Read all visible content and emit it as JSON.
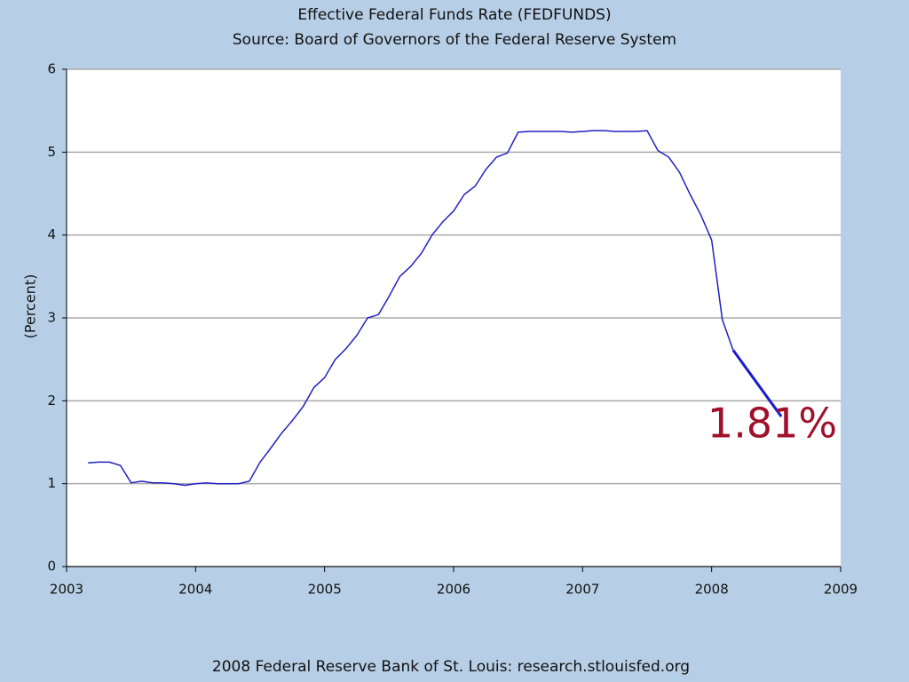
{
  "chart_data": {
    "type": "line",
    "title": "Effective Federal Funds Rate (FEDFUNDS)",
    "subtitle": "Source: Board of Governors of the Federal Reserve System",
    "ylabel": "(Percent)",
    "footer": "2008 Federal Reserve Bank of St. Louis: research.stlouisfed.org",
    "x": [
      2003.167,
      2003.25,
      2003.333,
      2003.417,
      2003.5,
      2003.583,
      2003.667,
      2003.75,
      2003.833,
      2003.917,
      2004.0,
      2004.083,
      2004.167,
      2004.25,
      2004.333,
      2004.417,
      2004.5,
      2004.583,
      2004.667,
      2004.75,
      2004.833,
      2004.917,
      2005.0,
      2005.083,
      2005.167,
      2005.25,
      2005.333,
      2005.417,
      2005.5,
      2005.583,
      2005.667,
      2005.75,
      2005.833,
      2005.917,
      2006.0,
      2006.083,
      2006.167,
      2006.25,
      2006.333,
      2006.417,
      2006.5,
      2006.583,
      2006.667,
      2006.75,
      2006.833,
      2006.917,
      2007.0,
      2007.083,
      2007.167,
      2007.25,
      2007.333,
      2007.417,
      2007.5,
      2007.583,
      2007.667,
      2007.75,
      2007.833,
      2007.917,
      2008.0,
      2008.083,
      2008.167
    ],
    "series": [
      {
        "name": "FEDFUNDS",
        "color": "#2020c0",
        "values": [
          1.25,
          1.26,
          1.26,
          1.22,
          1.01,
          1.03,
          1.01,
          1.01,
          1.0,
          0.98,
          1.0,
          1.01,
          1.0,
          1.0,
          1.0,
          1.03,
          1.26,
          1.43,
          1.61,
          1.76,
          1.93,
          2.16,
          2.28,
          2.5,
          2.63,
          2.79,
          3.0,
          3.04,
          3.26,
          3.5,
          3.62,
          3.78,
          4.0,
          4.16,
          4.29,
          4.49,
          4.59,
          4.79,
          4.94,
          4.99,
          5.24,
          5.25,
          5.25,
          5.25,
          5.25,
          5.24,
          5.25,
          5.26,
          5.26,
          5.25,
          5.25,
          5.25,
          5.26,
          5.02,
          4.94,
          4.76,
          4.49,
          4.24,
          3.94,
          2.98,
          2.61
        ]
      }
    ],
    "annotation": {
      "text": "1.81%",
      "color": "#a0102a",
      "line_color": "#1a1ad0",
      "x": [
        2008.167,
        2008.54
      ],
      "y": [
        2.61,
        1.81
      ]
    },
    "xlim": [
      2003,
      2009
    ],
    "xticks": [
      2003,
      2004,
      2005,
      2006,
      2007,
      2008,
      2009
    ],
    "ylim": [
      0,
      6
    ],
    "yticks": [
      0,
      1,
      2,
      3,
      4,
      5,
      6
    ],
    "grid": true
  }
}
